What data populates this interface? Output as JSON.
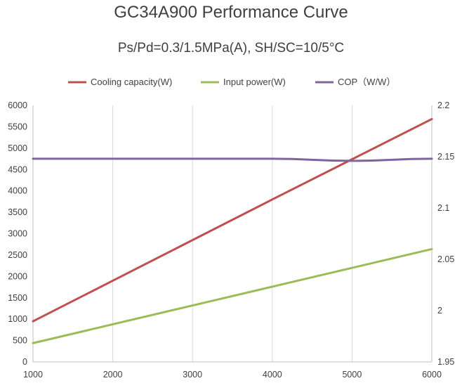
{
  "chart_data": {
    "type": "line",
    "title": "GC34A900 Performance Curve",
    "subtitle": "Ps/Pd=0.3/1.5MPa(A), SH/SC=10/5°C",
    "xlabel": "",
    "ylabel": "",
    "xlim": [
      1000,
      6000
    ],
    "ylim": [
      0,
      6000
    ],
    "y2lim": [
      1.95,
      2.2
    ],
    "grid": "vertical",
    "legend": "top",
    "x_ticks": [
      "1000",
      "2000",
      "3000",
      "4000",
      "5000",
      "6000"
    ],
    "y_ticks": [
      "0",
      "500",
      "1000",
      "1500",
      "2000",
      "2500",
      "3000",
      "3500",
      "4000",
      "4500",
      "5000",
      "5500",
      "6000"
    ],
    "y2_ticks": [
      "1.95",
      "2",
      "2.05",
      "2.1",
      "2.15",
      "2.2"
    ],
    "x": [
      1000,
      2000,
      3000,
      4000,
      5000,
      6000
    ],
    "series": [
      {
        "name": "Cooling capacity(W)",
        "axis": "left",
        "color": "#c0504d",
        "values": [
          950,
          1900,
          2850,
          3800,
          4740,
          5680
        ]
      },
      {
        "name": "Input power(W)",
        "axis": "left",
        "color": "#9bbb59",
        "values": [
          440,
          880,
          1320,
          1760,
          2200,
          2640
        ]
      },
      {
        "name": "COP（W/W）",
        "axis": "right",
        "color": "#8064a2",
        "values": [
          2.148,
          2.148,
          2.148,
          2.148,
          2.146,
          2.148
        ]
      }
    ]
  }
}
